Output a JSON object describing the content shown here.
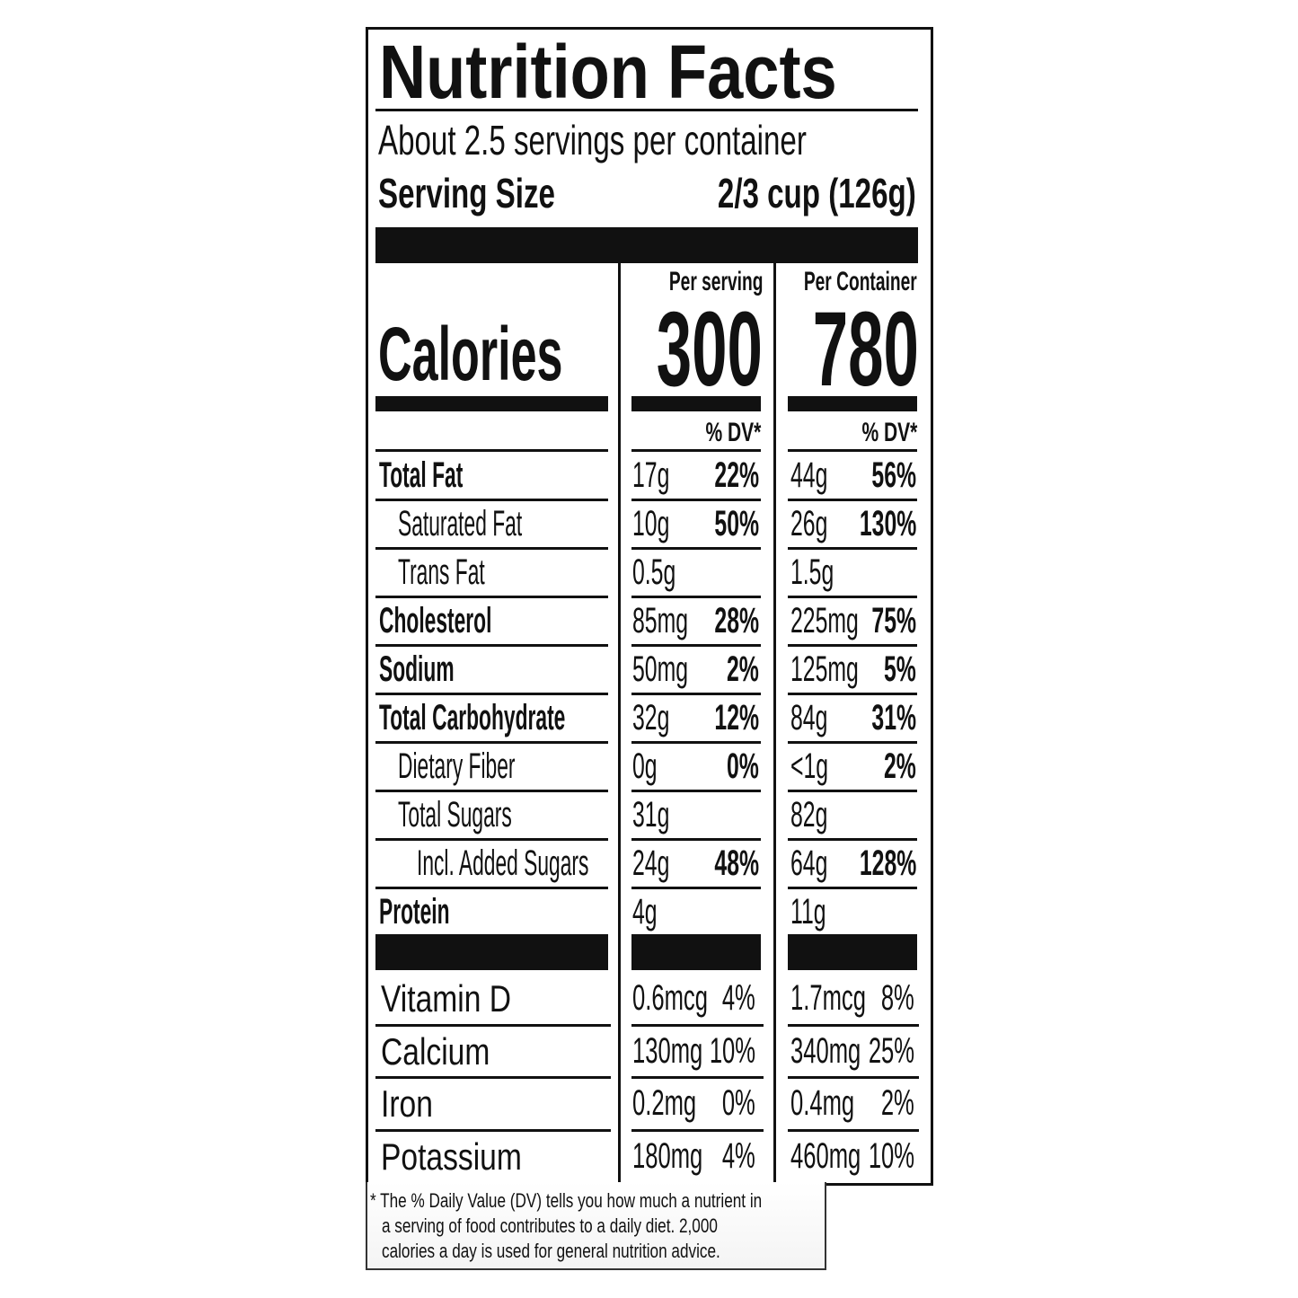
{
  "title": "Nutrition Facts",
  "servings_per_container": "About 2.5 servings per container",
  "serving_size_label": "Serving Size",
  "serving_size_value": "2/3 cup (126g)",
  "columns": {
    "per_serving": "Per serving",
    "per_container": "Per Container"
  },
  "calories": {
    "label": "Calories",
    "per_serving": "300",
    "per_container": "780"
  },
  "dv_header": "% DV*",
  "nutrients": [
    {
      "name": "Total Fat",
      "bold": true,
      "indent": 0,
      "serv_amt": "17g",
      "serv_dv": "22%",
      "cont_amt": "44g",
      "cont_dv": "56%"
    },
    {
      "name": "Saturated Fat",
      "bold": false,
      "indent": 1,
      "serv_amt": "10g",
      "serv_dv": "50%",
      "cont_amt": "26g",
      "cont_dv": "130%"
    },
    {
      "name": "Trans Fat",
      "bold": false,
      "indent": 1,
      "serv_amt": "0.5g",
      "serv_dv": "",
      "cont_amt": "1.5g",
      "cont_dv": ""
    },
    {
      "name": "Cholesterol",
      "bold": true,
      "indent": 0,
      "serv_amt": "85mg",
      "serv_dv": "28%",
      "cont_amt": "225mg",
      "cont_dv": "75%"
    },
    {
      "name": "Sodium",
      "bold": true,
      "indent": 0,
      "serv_amt": "50mg",
      "serv_dv": "2%",
      "cont_amt": "125mg",
      "cont_dv": "5%"
    },
    {
      "name": "Total Carbohydrate",
      "bold": true,
      "indent": 0,
      "serv_amt": "32g",
      "serv_dv": "12%",
      "cont_amt": "84g",
      "cont_dv": "31%"
    },
    {
      "name": "Dietary Fiber",
      "bold": false,
      "indent": 1,
      "serv_amt": "0g",
      "serv_dv": "0%",
      "cont_amt": "<1g",
      "cont_dv": "2%"
    },
    {
      "name": "Total Sugars",
      "bold": false,
      "indent": 1,
      "serv_amt": "31g",
      "serv_dv": "",
      "cont_amt": "82g",
      "cont_dv": ""
    },
    {
      "name": "Incl. Added Sugars",
      "bold": false,
      "indent": 2,
      "serv_amt": "24g",
      "serv_dv": "48%",
      "cont_amt": "64g",
      "cont_dv": "128%"
    },
    {
      "name": "Protein",
      "bold": true,
      "indent": 0,
      "serv_amt": "4g",
      "serv_dv": "",
      "cont_amt": "11g",
      "cont_dv": ""
    }
  ],
  "vitamins": [
    {
      "name": "Vitamin D",
      "serv_amt": "0.6mcg",
      "serv_dv": "4%",
      "cont_amt": "1.7mcg",
      "cont_dv": "8%"
    },
    {
      "name": "Calcium",
      "serv_amt": "130mg",
      "serv_dv": "10%",
      "cont_amt": "340mg",
      "cont_dv": "25%"
    },
    {
      "name": "Iron",
      "serv_amt": "0.2mg",
      "serv_dv": "0%",
      "cont_amt": "0.4mg",
      "cont_dv": "2%"
    },
    {
      "name": "Potassium",
      "serv_amt": "180mg",
      "serv_dv": "4%",
      "cont_amt": "460mg",
      "cont_dv": "10%"
    }
  ],
  "footnote": {
    "line1": "* The % Daily Value (DV) tells you how much a nutrient in",
    "line2": "a serving of food contributes to a daily diet. 2,000",
    "line3": "calories a day is used for general nutrition advice."
  }
}
